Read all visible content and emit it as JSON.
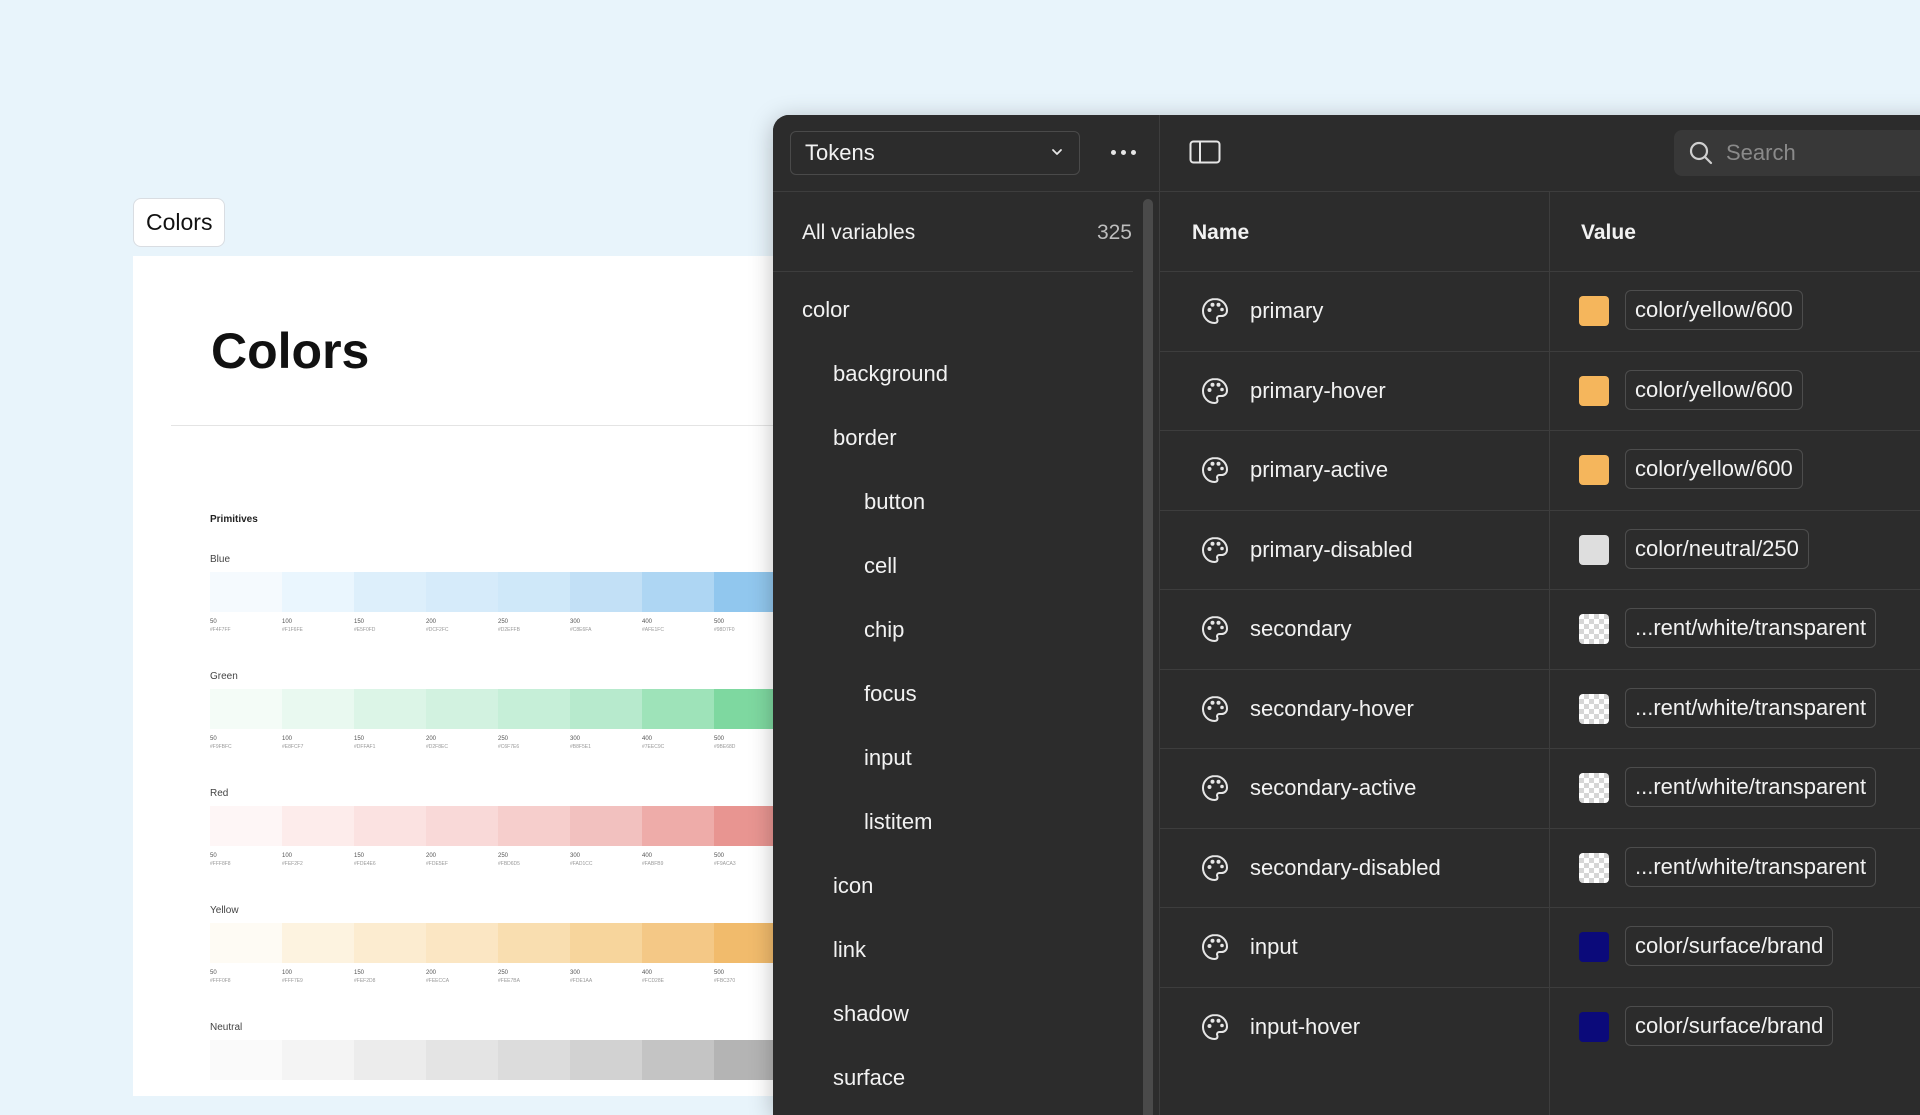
{
  "doc": {
    "tag": "Colors",
    "title": "Colors",
    "section": "Primitives",
    "groups": [
      {
        "label": "Blue",
        "colors": [
          "#f5fafe",
          "#eaf6fe",
          "#ddeffb",
          "#d6ebfa",
          "#cfe8f9",
          "#c2e0f6",
          "#aed6f3",
          "#91c7ee"
        ],
        "steps": [
          "50",
          "100",
          "150",
          "200",
          "250",
          "300",
          "400",
          "500"
        ],
        "hex": [
          "#F4F7FF",
          "#F1F6FE",
          "#E5F0FD",
          "#DCF2FC",
          "#D2EFFB",
          "#C8E6FA",
          "#AFE1FC",
          "#98D7F0"
        ]
      },
      {
        "label": "Green",
        "colors": [
          "#f4fcf7",
          "#e9f9f0",
          "#dcf5e7",
          "#d2f2e0",
          "#c6efd8",
          "#b7eacd",
          "#9ee3b9",
          "#7ed8a0"
        ],
        "steps": [
          "50",
          "100",
          "150",
          "200",
          "250",
          "300",
          "400",
          "500"
        ],
        "hex": [
          "#F9FBFC",
          "#E8FCF7",
          "#DFFAF1",
          "#D2F8EC",
          "#C6F7E6",
          "#B8F5E1",
          "#7EEC9C",
          "#9BE68D"
        ]
      },
      {
        "label": "Red",
        "colors": [
          "#fef6f6",
          "#fdeceb",
          "#fbe2e1",
          "#f9d9d8",
          "#f6cecc",
          "#f2c1bf",
          "#eeaca9",
          "#e89591"
        ],
        "steps": [
          "50",
          "100",
          "150",
          "200",
          "250",
          "300",
          "400",
          "500"
        ],
        "hex": [
          "#FFF8F8",
          "#FEF2F2",
          "#FDE4E6",
          "#FDE5EF",
          "#FBD6D5",
          "#FAD1CC",
          "#FABFB9",
          "#F9ACA3"
        ]
      },
      {
        "label": "Yellow",
        "colors": [
          "#fefbf4",
          "#fdf3e0",
          "#fcecd0",
          "#fbe6c3",
          "#f9deb0",
          "#f7d59c",
          "#f4c886",
          "#f1bb6c"
        ],
        "steps": [
          "50",
          "100",
          "150",
          "200",
          "250",
          "300",
          "400",
          "500"
        ],
        "hex": [
          "#FFF0F8",
          "#FFF7E9",
          "#FEF2D8",
          "#FEECCA",
          "#FEE7BA",
          "#FDE1AA",
          "#FCD28E",
          "#FBC370"
        ]
      },
      {
        "label": "Neutral",
        "colors": [
          "#fafafa",
          "#f4f4f4",
          "#ececec",
          "#e4e4e4",
          "#dcdcdc",
          "#d2d2d2",
          "#c4c4c4",
          "#b4b4b4"
        ],
        "steps": [],
        "hex": []
      }
    ]
  },
  "panel": {
    "collection": "Tokens",
    "all_variables_label": "All variables",
    "all_variables_count": "325",
    "tree": [
      {
        "label": "color",
        "level": 0
      },
      {
        "label": "background",
        "level": 1
      },
      {
        "label": "border",
        "level": 1
      },
      {
        "label": "button",
        "level": 2
      },
      {
        "label": "cell",
        "level": 2
      },
      {
        "label": "chip",
        "level": 2
      },
      {
        "label": "focus",
        "level": 2
      },
      {
        "label": "input",
        "level": 2
      },
      {
        "label": "listitem",
        "level": 2
      },
      {
        "label": "icon",
        "level": 1
      },
      {
        "label": "link",
        "level": 1
      },
      {
        "label": "shadow",
        "level": 1
      },
      {
        "label": "surface",
        "level": 1
      }
    ],
    "search_placeholder": "Search",
    "columns": {
      "name": "Name",
      "value": "Value"
    },
    "rows": [
      {
        "name": "primary",
        "value": "color/yellow/600",
        "swatch": "#f5b65c"
      },
      {
        "name": "primary-hover",
        "value": "color/yellow/600",
        "swatch": "#f5b65c"
      },
      {
        "name": "primary-active",
        "value": "color/yellow/600",
        "swatch": "#f5b65c"
      },
      {
        "name": "primary-disabled",
        "value": "color/neutral/250",
        "swatch": "#dedede"
      },
      {
        "name": "secondary",
        "value": "...rent/white/transparent",
        "swatch": "transparent"
      },
      {
        "name": "secondary-hover",
        "value": "...rent/white/transparent",
        "swatch": "transparent"
      },
      {
        "name": "secondary-active",
        "value": "...rent/white/transparent",
        "swatch": "transparent"
      },
      {
        "name": "secondary-disabled",
        "value": "...rent/white/transparent",
        "swatch": "transparent"
      },
      {
        "name": "input",
        "value": "color/surface/brand",
        "swatch": "#0b0a7a"
      },
      {
        "name": "input-hover",
        "value": "color/surface/brand",
        "swatch": "#0b0a7a"
      }
    ]
  }
}
